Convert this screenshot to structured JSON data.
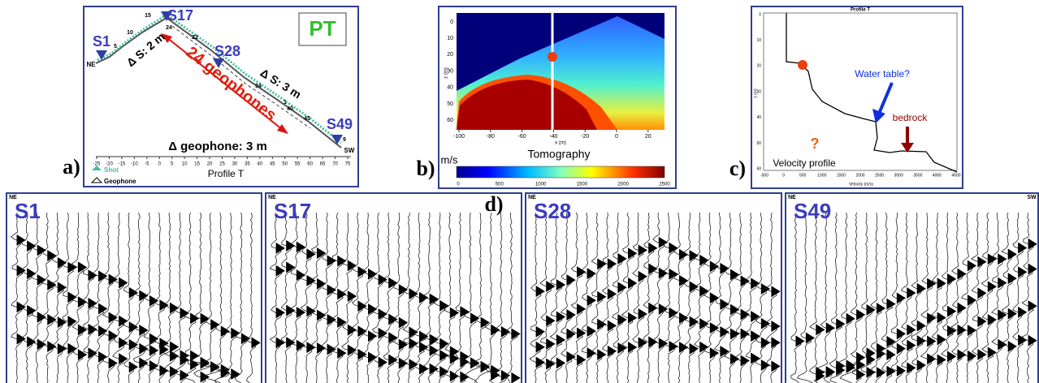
{
  "panels": {
    "a": {
      "label": "a)",
      "title": "PT",
      "shots": [
        "S1",
        "S17",
        "S28",
        "S49"
      ],
      "notes": [
        "Δ S: 2 m",
        "24 geophones",
        "Δ S: 3 m",
        "Δ geophone: 3 m"
      ],
      "ends": [
        "NE",
        "SW"
      ],
      "axis_label": "Profile T",
      "xticks": [
        -25,
        -20,
        -15,
        -10,
        -5,
        0,
        5,
        10,
        15,
        20,
        25,
        30,
        35,
        40,
        45,
        50,
        55,
        60,
        65,
        70,
        75
      ],
      "station_numbers": [
        5,
        10,
        15,
        22,
        24,
        34,
        40,
        43,
        1,
        9
      ],
      "legend": [
        "Shot",
        "Geophone"
      ]
    },
    "b": {
      "label": "b)",
      "axis_x": "x (m)",
      "axis_y": "z (m)",
      "xticks": [
        -100,
        -80,
        -60,
        -40,
        -20,
        0,
        20
      ],
      "yticks": [
        0,
        10,
        20,
        30,
        40,
        50,
        60
      ],
      "caption": "Tomography",
      "unit": "m/s",
      "colorbar_ticks": [
        0,
        500,
        1000,
        1500,
        2000,
        2500
      ]
    },
    "c": {
      "label": "c)",
      "title": "Profile T",
      "axis_x": "Velocity (m/s)",
      "axis_y": "z (m)",
      "xticks": [
        -500,
        0,
        500,
        1000,
        1500,
        2000,
        2500,
        3000,
        3500,
        4000,
        4500
      ],
      "yticks": [
        0,
        10,
        20,
        30,
        40,
        50,
        60
      ],
      "annotations": [
        "Water table?",
        "bedrock",
        "?"
      ],
      "caption": "Velocity profile"
    },
    "d": {
      "label": "d)",
      "shots": [
        "S1",
        "S17",
        "S28",
        "S49"
      ],
      "ends": [
        "NE",
        "SW"
      ]
    }
  }
}
